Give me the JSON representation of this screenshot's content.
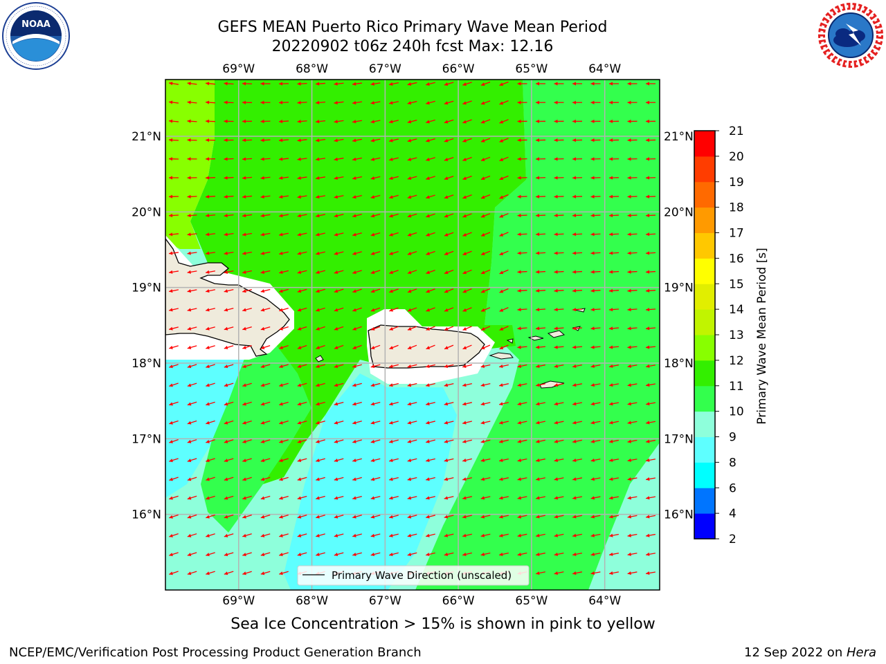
{
  "header": {
    "title_line1": "GEFS MEAN Puerto Rico Primary Wave Mean Period",
    "title_line2": "20220902 t06z 240h fcst   Max: 12.16"
  },
  "logos": {
    "left": {
      "name": "NOAA",
      "ring_text": "NATIONAL OCEANIC AND ATMOSPHERIC ADMINISTRATION · U.S. DEPARTMENT OF COMMERCE"
    },
    "right": {
      "name": "NATIONAL WEATHER SERVICE"
    }
  },
  "map": {
    "lon_labels": [
      "69°W",
      "68°W",
      "67°W",
      "66°W",
      "65°W",
      "64°W"
    ],
    "lat_labels": [
      "21°N",
      "20°N",
      "19°N",
      "18°N",
      "17°N",
      "16°N"
    ],
    "lon_values": [
      -69,
      -68,
      -67,
      -66,
      -65,
      -64
    ],
    "lat_values": [
      21,
      20,
      19,
      18,
      17,
      16
    ],
    "extent": {
      "lon_min": -70.0,
      "lon_max": -63.25,
      "lat_min": 15.0,
      "lat_max": 21.75
    },
    "arrow_color": "#ff0000",
    "land_color": "#efebdc",
    "legend_label": "Primary Wave Direction (unscaled)"
  },
  "colorbar": {
    "label": "Primary Wave Mean Period [s]",
    "ticks": [
      2,
      4,
      6,
      8,
      9,
      10,
      11,
      12,
      13,
      14,
      15,
      16,
      17,
      18,
      19,
      20,
      21
    ],
    "colors": [
      "#0000ff",
      "#0075ff",
      "#00ffff",
      "#5effff",
      "#8effdb",
      "#33ff4d",
      "#33ef00",
      "#88ff00",
      "#c1f400",
      "#e1ee00",
      "#ffff00",
      "#ffc800",
      "#ff9a00",
      "#ff6a00",
      "#ff3d00",
      "#ff0000"
    ]
  },
  "subtitle": "Sea Ice Concentration > 15% is shown in pink to yellow",
  "footer": {
    "left": "NCEP/EMC/Verification Post Processing Product Generation Branch",
    "date": "12 Sep 2022 on ",
    "host": "Hera"
  }
}
